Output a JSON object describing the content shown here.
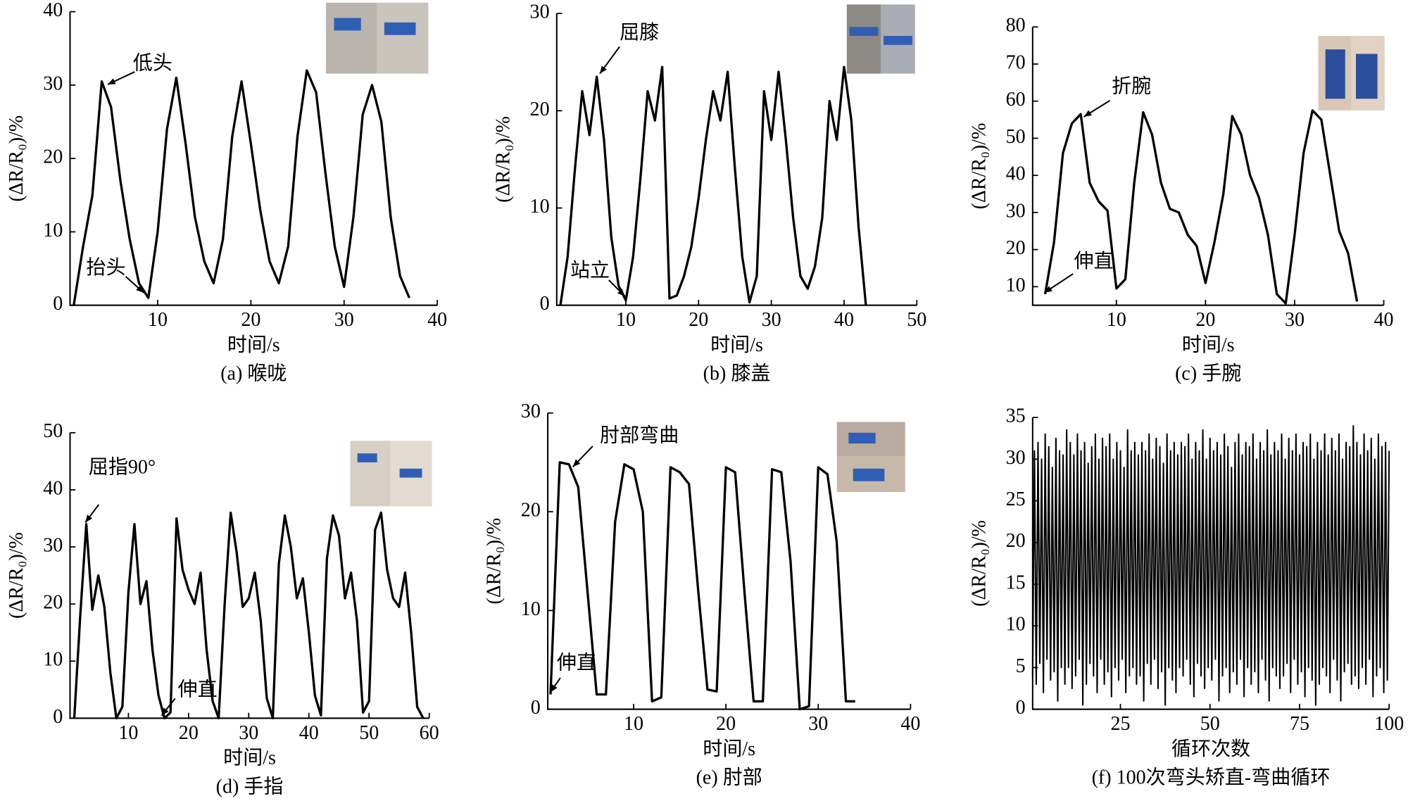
{
  "chart_data": [
    {
      "type": "line",
      "caption": "(a) 喉咙",
      "xlabel": "时间/s",
      "ylabel": "(ΔR/R₀)/%",
      "xlim": [
        0.6,
        40
      ],
      "xticks": [
        10,
        20,
        30,
        40
      ],
      "ylim": [
        0,
        40
      ],
      "yticks": [
        0,
        10,
        20,
        30,
        40
      ],
      "annotations": [
        "低头",
        "抬头"
      ],
      "series": [
        {
          "color": "#000000",
          "x": [
            1,
            2,
            3,
            4,
            5,
            6,
            7,
            8,
            9,
            10,
            11,
            12,
            13,
            14,
            15,
            16,
            17,
            18,
            19,
            20,
            21,
            22,
            23,
            24,
            25,
            26,
            27,
            28,
            29,
            30,
            31,
            32,
            33,
            34,
            35,
            36,
            37
          ],
          "values": [
            0,
            8,
            15,
            30.5,
            27,
            17,
            9,
            3,
            1,
            10,
            24,
            31,
            22,
            12,
            6,
            3,
            9,
            23,
            30.5,
            22,
            13,
            6,
            3,
            8,
            23,
            32,
            29,
            18,
            8,
            2.5,
            12,
            26,
            30,
            25,
            12,
            4,
            1
          ]
        }
      ]
    },
    {
      "type": "line",
      "caption": "(b) 膝盖",
      "xlabel": "时间/s",
      "ylabel": "(ΔR/R₀)/%",
      "xlim": [
        0.5,
        50
      ],
      "xticks": [
        10,
        20,
        30,
        40,
        50
      ],
      "ylim": [
        0,
        30
      ],
      "yticks": [
        0,
        10,
        20,
        30
      ],
      "annotations": [
        "屈膝",
        "站立"
      ],
      "series": [
        {
          "color": "#000000",
          "x": [
            1,
            2,
            3,
            4,
            5,
            6,
            7,
            8,
            9,
            10,
            11,
            12,
            13,
            14,
            15,
            16,
            17,
            18,
            19,
            20,
            21,
            22,
            23,
            24,
            25,
            26,
            27,
            28,
            29,
            30,
            31,
            32,
            33,
            34,
            35,
            36,
            37,
            38,
            39,
            40,
            41,
            42,
            43
          ],
          "values": [
            0,
            5,
            14,
            22,
            17.5,
            23.5,
            17,
            7,
            2,
            0.5,
            5,
            13,
            22,
            19,
            24.5,
            0.7,
            1,
            3,
            6,
            11,
            17,
            22,
            19,
            24,
            14,
            5,
            0.3,
            3,
            22,
            17,
            24,
            17,
            9,
            3,
            1.7,
            4,
            9,
            21,
            17,
            24.5,
            19,
            8,
            0
          ]
        }
      ]
    },
    {
      "type": "line",
      "caption": "(c) 手腕",
      "xlabel": "时间/s",
      "ylabel": "(ΔR/R₀)/%",
      "xlim": [
        0.6,
        40
      ],
      "xticks": [
        10,
        20,
        30,
        40
      ],
      "ylim": [
        5,
        80
      ],
      "yticks": [
        10,
        20,
        30,
        40,
        50,
        60,
        70,
        80
      ],
      "annotations": [
        "折腕",
        "伸直"
      ],
      "series": [
        {
          "color": "#000000",
          "x": [
            2,
            3,
            4,
            5,
            6,
            7,
            8,
            9,
            10,
            11,
            12,
            13,
            14,
            15,
            16,
            17,
            18,
            19,
            20,
            21,
            22,
            23,
            24,
            25,
            26,
            27,
            28,
            29,
            30,
            31,
            32,
            33,
            34,
            35,
            36,
            37
          ],
          "values": [
            8,
            22,
            46,
            54,
            56.5,
            38,
            33,
            30.5,
            9.5,
            12,
            38,
            57,
            51,
            38,
            31,
            30,
            24,
            21,
            11,
            22,
            35,
            56,
            51,
            40,
            34,
            24,
            8,
            5.5,
            24,
            46,
            57.5,
            55,
            40,
            25,
            19,
            6
          ]
        }
      ]
    },
    {
      "type": "line",
      "caption": "(d) 手指",
      "xlabel": "时间/s",
      "ylabel": "(ΔR/R₀)/%",
      "xlim": [
        0.3,
        60
      ],
      "xticks": [
        10,
        20,
        30,
        40,
        50,
        60
      ],
      "ylim": [
        0,
        50
      ],
      "yticks": [
        0,
        10,
        20,
        30,
        40,
        50
      ],
      "annotations": [
        "屈指90°",
        "伸直"
      ],
      "series": [
        {
          "color": "#000000",
          "x": [
            1,
            2,
            3,
            4,
            5,
            6,
            7,
            8,
            9,
            10,
            11,
            12,
            13,
            14,
            15,
            16,
            17,
            18,
            19,
            20,
            21,
            22,
            23,
            24,
            25,
            26,
            27,
            28,
            29,
            30,
            31,
            32,
            33,
            34,
            35,
            36,
            37,
            38,
            39,
            40,
            41,
            42,
            43,
            44,
            45,
            46,
            47,
            48,
            49,
            50,
            51,
            52,
            53,
            54,
            55,
            56,
            57,
            58,
            59
          ],
          "values": [
            0,
            18,
            34,
            19,
            25,
            19.5,
            8,
            0,
            2,
            22,
            34,
            20,
            24,
            12,
            4,
            0,
            1,
            35,
            26,
            22.5,
            20,
            25.5,
            12,
            3,
            0,
            20,
            36,
            29,
            19.5,
            21,
            25.5,
            17,
            3.5,
            0,
            27,
            35.5,
            30,
            21,
            24.5,
            15,
            4,
            0.5,
            28,
            35.5,
            32,
            21,
            25.5,
            17,
            1,
            3,
            33,
            36,
            26,
            21,
            19.5,
            25.5,
            15,
            2,
            0
          ]
        }
      ]
    },
    {
      "type": "line",
      "caption": "(e) 肘部",
      "xlabel": "时间/s",
      "ylabel": "(ΔR/R₀)/%",
      "xlim": [
        0.7,
        40
      ],
      "xticks": [
        10,
        20,
        30,
        40
      ],
      "ylim": [
        0,
        30
      ],
      "yticks": [
        0,
        10,
        20,
        30
      ],
      "annotations": [
        "肘部弯曲",
        "伸直"
      ],
      "series": [
        {
          "color": "#000000",
          "x": [
            1,
            2,
            3,
            4,
            5,
            6,
            7,
            8,
            9,
            10,
            11,
            12,
            13,
            14,
            15,
            16,
            17,
            18,
            19,
            20,
            21,
            22,
            23,
            24,
            25,
            26,
            27,
            28,
            29,
            30,
            31,
            32,
            33,
            34
          ],
          "values": [
            1.5,
            25,
            24.8,
            22.5,
            12,
            1.5,
            1.5,
            19,
            24.8,
            24.3,
            20,
            0.8,
            1.2,
            24.5,
            24,
            22.8,
            12,
            2,
            1.8,
            24.5,
            24,
            12,
            0.8,
            0.8,
            24.3,
            24,
            15,
            0,
            0.3,
            24.5,
            23.8,
            17,
            0.8,
            0.8
          ]
        }
      ]
    },
    {
      "type": "line",
      "caption": "(f) 100次弯头矫直-弯曲循环",
      "xlabel": "循环次数",
      "ylabel": "(ΔR/R₀)/%",
      "xlim": [
        0.5,
        100
      ],
      "xticks": [
        25,
        50,
        75,
        100
      ],
      "ylim": [
        0,
        35
      ],
      "yticks": [
        0,
        5,
        10,
        15,
        20,
        25,
        30,
        35
      ],
      "annotations": [],
      "series": [
        {
          "color": "#000000",
          "x": [
            0.5,
            1,
            1.5,
            2,
            2.5,
            3,
            3.5,
            4,
            4.5,
            5,
            5.5,
            6,
            6.5,
            7,
            7.5,
            8,
            8.5,
            9,
            9.5,
            10,
            10.5,
            11,
            11.5,
            12,
            12.5,
            13,
            13.5,
            14,
            14.5,
            15,
            15.5,
            16,
            16.5,
            17,
            17.5,
            18,
            18.5,
            19,
            19.5,
            20,
            20.5,
            21,
            21.5,
            22,
            22.5,
            23,
            23.5,
            24,
            24.5,
            25,
            25.5,
            26,
            26.5,
            27,
            27.5,
            28,
            28.5,
            29,
            29.5,
            30,
            30.5,
            31,
            31.5,
            32,
            32.5,
            33,
            33.5,
            34,
            34.5,
            35,
            35.5,
            36,
            36.5,
            37,
            37.5,
            38,
            38.5,
            39,
            39.5,
            40,
            40.5,
            41,
            41.5,
            42,
            42.5,
            43,
            43.5,
            44,
            44.5,
            45,
            45.5,
            46,
            46.5,
            47,
            47.5,
            48,
            48.5,
            49,
            49.5,
            50,
            50.5,
            51,
            51.5,
            52,
            52.5,
            53,
            53.5,
            54,
            54.5,
            55,
            55.5,
            56,
            56.5,
            57,
            57.5,
            58,
            58.5,
            59,
            59.5,
            60,
            60.5,
            61,
            61.5,
            62,
            62.5,
            63,
            63.5,
            64,
            64.5,
            65,
            65.5,
            66,
            66.5,
            67,
            67.5,
            68,
            68.5,
            69,
            69.5,
            70,
            70.5,
            71,
            71.5,
            72,
            72.5,
            73,
            73.5,
            74,
            74.5,
            75,
            75.5,
            76,
            76.5,
            77,
            77.5,
            78,
            78.5,
            79,
            79.5,
            80,
            80.5,
            81,
            81.5,
            82,
            82.5,
            83,
            83.5,
            84,
            84.5,
            85,
            85.5,
            86,
            86.5,
            87,
            87.5,
            88,
            88.5,
            89,
            89.5,
            90,
            90.5,
            91,
            91.5,
            92,
            92.5,
            93,
            93.5,
            94,
            94.5,
            95,
            95.5,
            96,
            96.5,
            97,
            97.5,
            98,
            98.5,
            99,
            99.5,
            100
          ],
          "values": [
            4,
            31,
            3,
            32,
            5.5,
            30,
            2,
            33,
            6,
            31.5,
            3.5,
            29,
            4.5,
            32.5,
            1,
            31,
            5,
            30.5,
            3,
            33.5,
            5,
            32,
            2.5,
            30.5,
            4,
            33,
            6,
            31,
            0.5,
            32,
            3,
            29.5,
            5.5,
            31.5,
            4,
            33,
            2,
            30,
            6,
            32.5,
            3,
            31.5,
            4.5,
            33,
            1.5,
            30,
            5,
            32,
            3.5,
            31,
            6,
            29,
            2,
            33.5,
            4,
            31,
            5,
            32,
            3,
            30.5,
            4,
            32,
            1,
            31,
            5.5,
            33,
            3,
            30,
            6,
            32.5,
            2.5,
            31.5,
            4.5,
            29.5,
            0.5,
            33,
            5,
            31,
            3.5,
            32,
            2,
            30.5,
            5,
            32,
            4,
            31.5,
            6,
            33,
            3,
            30,
            1.5,
            32,
            5.5,
            31,
            4,
            33.5,
            2.5,
            30,
            5,
            32.5,
            3.5,
            31,
            6,
            32,
            1,
            30.5,
            4,
            33,
            5,
            31.5,
            2,
            29,
            4.5,
            32,
            3,
            33,
            6,
            30.5,
            1.5,
            32,
            5,
            31.5,
            3,
            33,
            4.5,
            30,
            2,
            32,
            6,
            31,
            3.5,
            33.5,
            1,
            30.5,
            5,
            32,
            4,
            31,
            2.5,
            33,
            4,
            30,
            5.5,
            32.5,
            2,
            31,
            6,
            33,
            3,
            30.5,
            4.5,
            32,
            1.5,
            31.5,
            5,
            33,
            3.5,
            30,
            0.5,
            32,
            3,
            31,
            5,
            33,
            4,
            30.5,
            2,
            32.5,
            6,
            31,
            3.5,
            33,
            1,
            30,
            4.5,
            32,
            5.5,
            31.5,
            3,
            34,
            4,
            32,
            2.5,
            30.5,
            5,
            33,
            3,
            31,
            6,
            32.5,
            1.5,
            30,
            4,
            33,
            5,
            31.5,
            2,
            32,
            3.5,
            31
          ]
        }
      ]
    }
  ]
}
